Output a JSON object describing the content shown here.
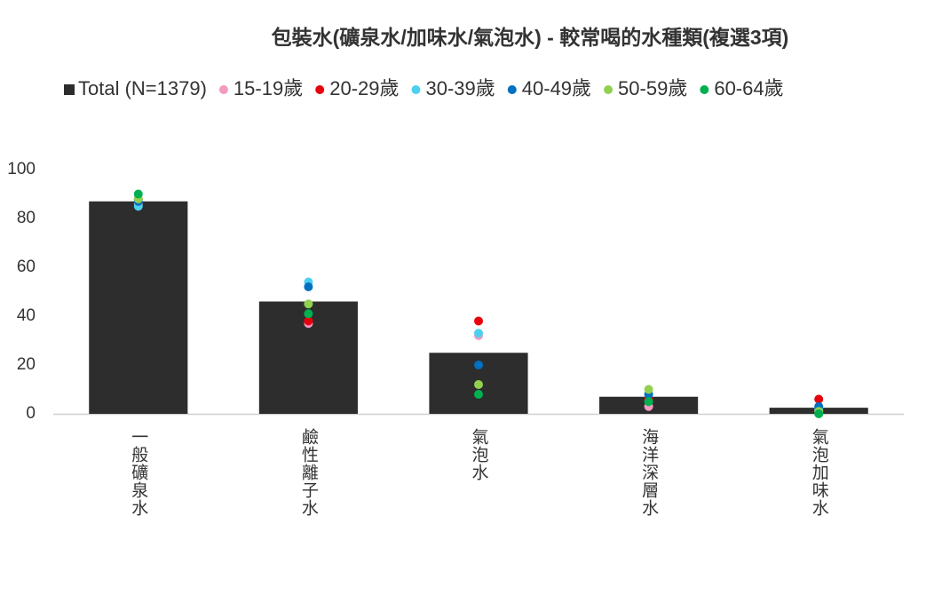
{
  "chart_data": {
    "type": "bar",
    "title": "包裝水(礦泉水/加味水/氣泡水) - 較常喝的水種類(複選3項)",
    "categories": [
      "一般礦泉水",
      "鹼性離子水",
      "氣泡水",
      "海洋深層水",
      "氣泡加味水"
    ],
    "series": [
      {
        "name": "Total (N=1379)",
        "type": "bar",
        "color": "#2d2d2d",
        "values": [
          87,
          46,
          25,
          7,
          2.5
        ]
      },
      {
        "name": "15-19歲",
        "type": "scatter",
        "color": "#f49ac1",
        "values": [
          86,
          37,
          32,
          3,
          1
        ]
      },
      {
        "name": "20-29歲",
        "type": "scatter",
        "color": "#e8000b",
        "values": [
          88,
          38,
          38,
          6,
          6
        ]
      },
      {
        "name": "30-39歲",
        "type": "scatter",
        "color": "#4dd0f0",
        "values": [
          85,
          54,
          33,
          8,
          2
        ]
      },
      {
        "name": "40-49歲",
        "type": "scatter",
        "color": "#0070c0",
        "values": [
          87,
          52,
          20,
          8,
          3
        ]
      },
      {
        "name": "50-59歲",
        "type": "scatter",
        "color": "#92d050",
        "values": [
          88,
          45,
          12,
          10,
          1
        ]
      },
      {
        "name": "60-64歲",
        "type": "scatter",
        "color": "#00b050",
        "values": [
          90,
          41,
          8,
          5,
          0
        ]
      }
    ],
    "ylim": [
      0,
      100
    ],
    "yticks": [
      0,
      20,
      40,
      60,
      80,
      100
    ],
    "grid": false,
    "legend": "top"
  }
}
